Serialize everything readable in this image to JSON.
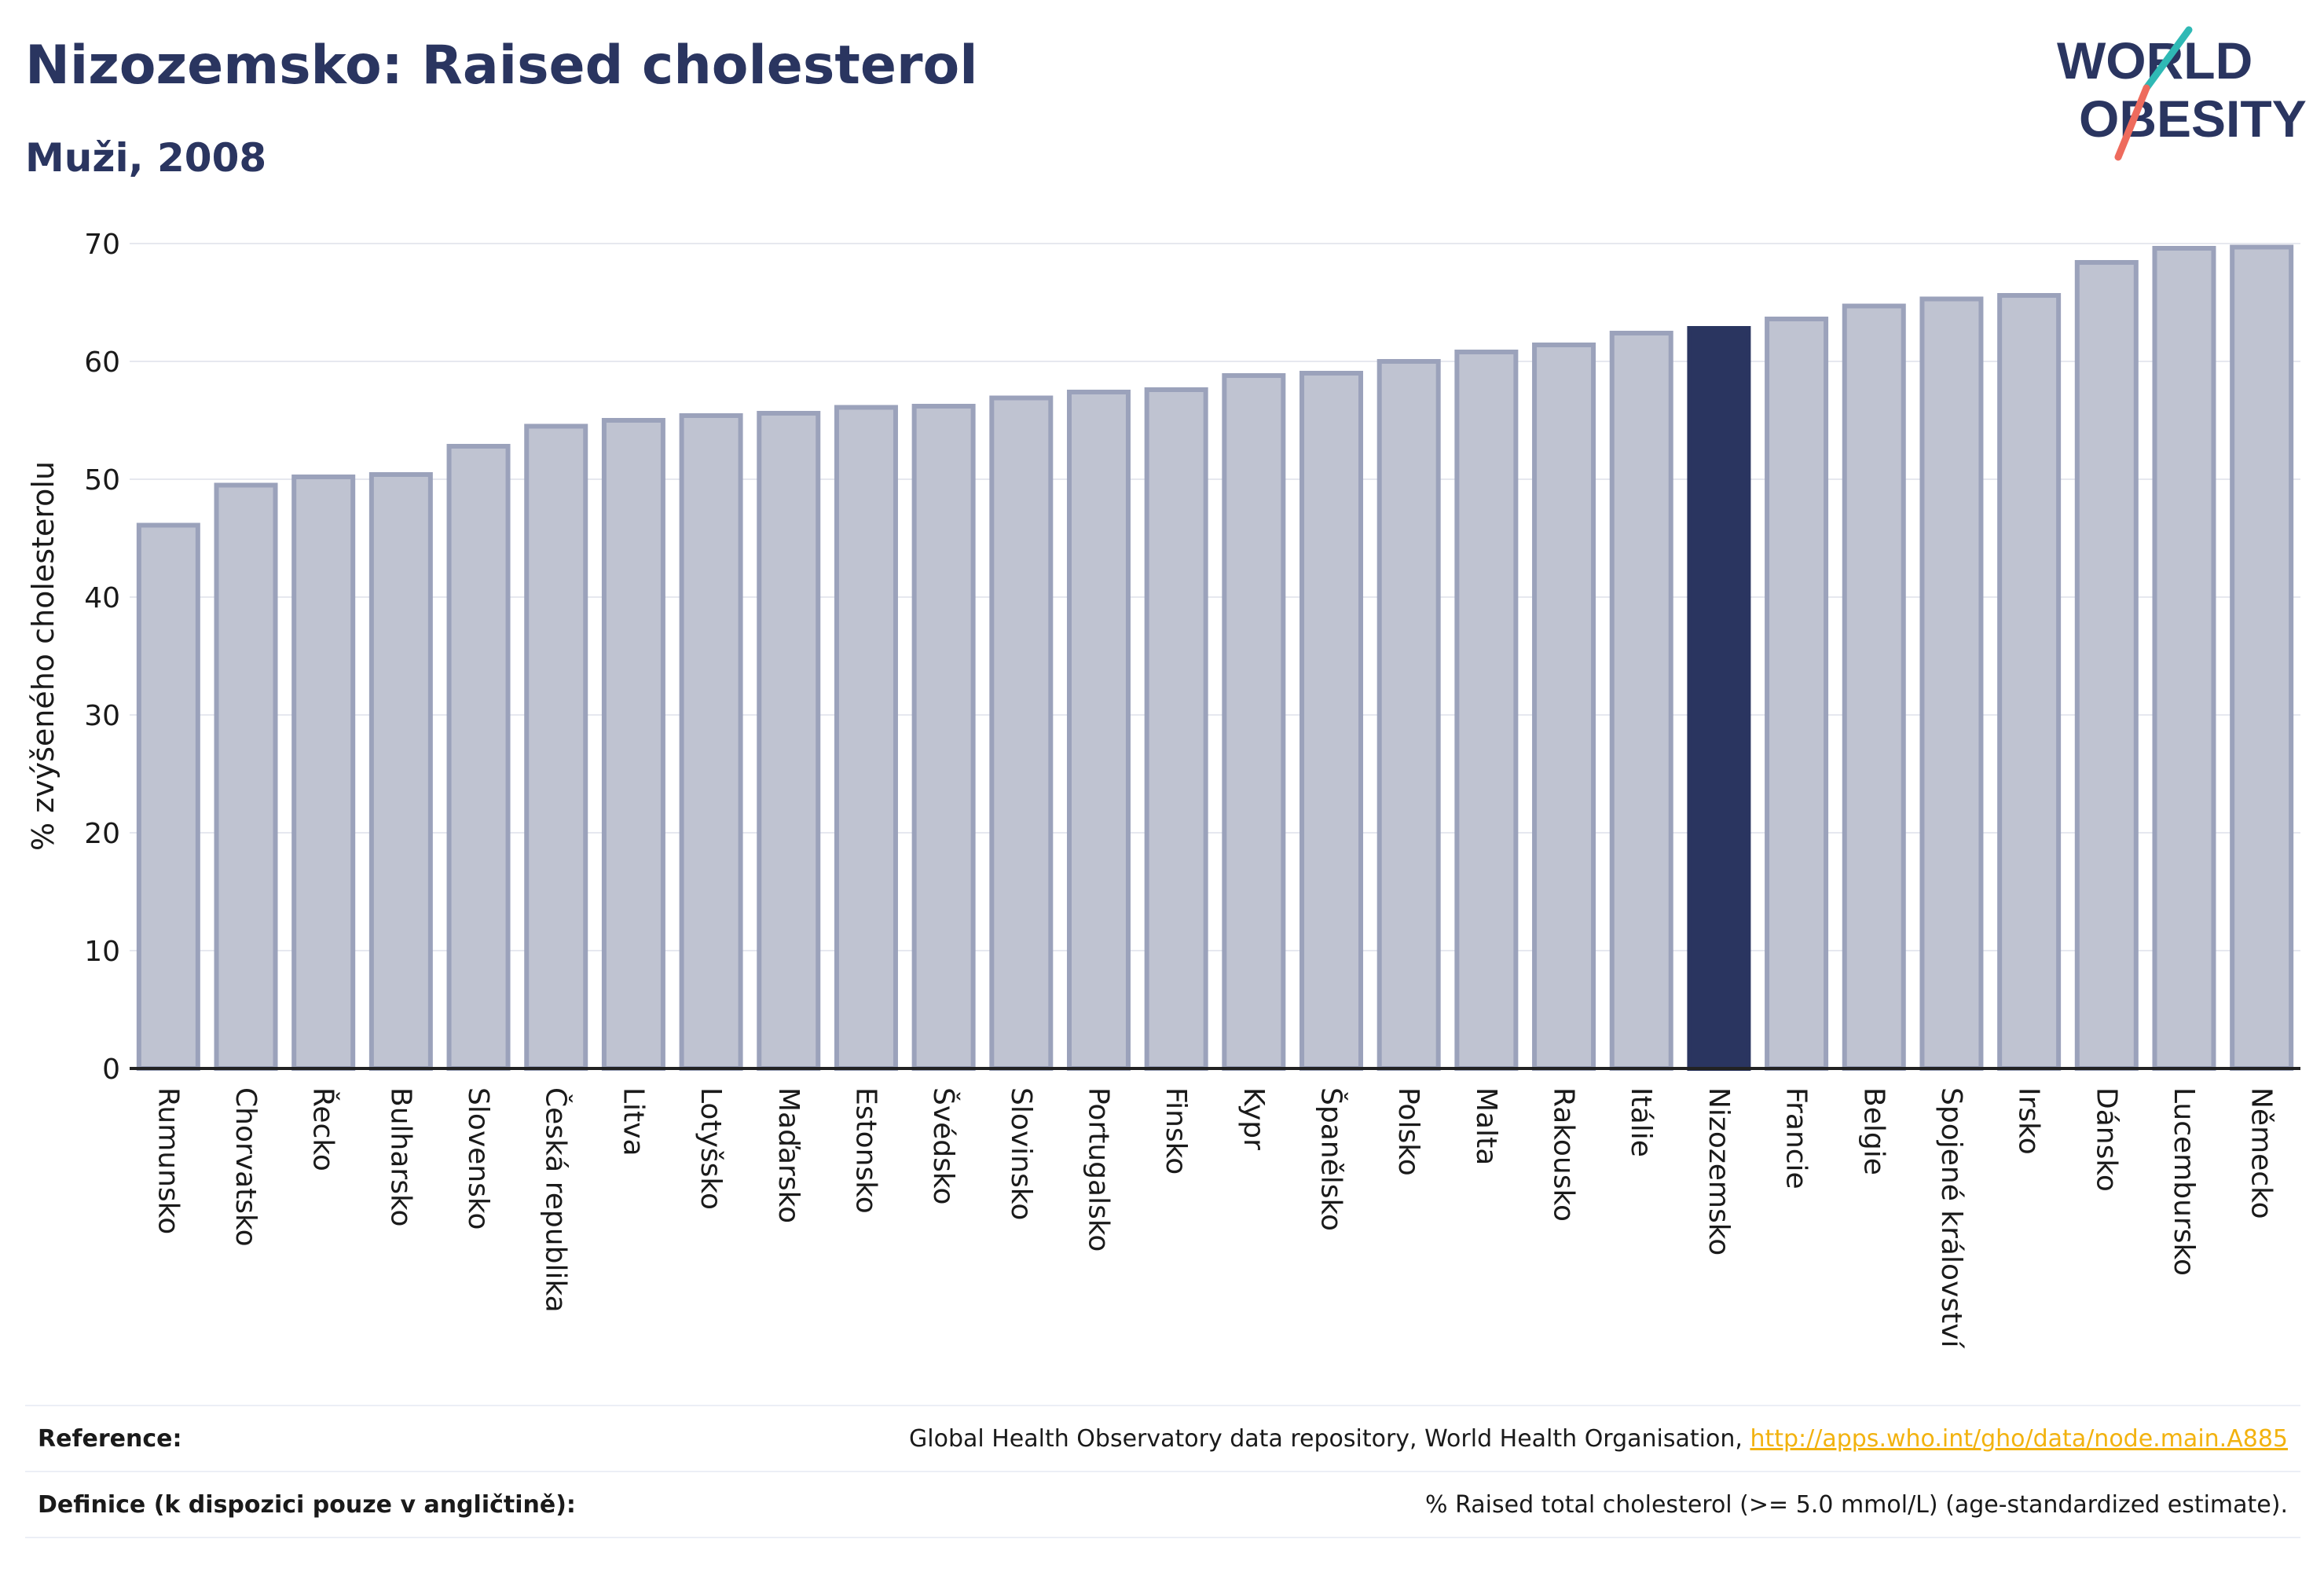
{
  "header": {
    "title": "Nizozemsko: Raised cholesterol",
    "subtitle": "Muži, 2008",
    "logo": {
      "line1": "WORLD",
      "line2": "OBESITY"
    }
  },
  "colors": {
    "title": "#2a3560",
    "bar_fill": "#bfc3d1",
    "bar_stroke": "#9ba2bb",
    "highlight": "#2a3560",
    "logo_teal": "#2fb9b5",
    "logo_coral": "#ee6b5d",
    "link": "#f2b20f"
  },
  "chart_data": {
    "type": "bar",
    "title": "",
    "xlabel": "",
    "ylabel": "% zvýšeného cholesterolu",
    "ylim": [
      0,
      70
    ],
    "yticks": [
      0,
      10,
      20,
      30,
      40,
      50,
      60,
      70
    ],
    "grid": true,
    "highlight_category": "Nizozemsko",
    "categories": [
      "Rumunsko",
      "Chorvatsko",
      "Řecko",
      "Bulharsko",
      "Slovensko",
      "Česká republika",
      "Litva",
      "Lotyšsko",
      "Maďarsko",
      "Estonsko",
      "Švédsko",
      "Slovinsko",
      "Portugalsko",
      "Finsko",
      "Kypr",
      "Španělsko",
      "Polsko",
      "Malta",
      "Rakousko",
      "Itálie",
      "Nizozemsko",
      "Francie",
      "Belgie",
      "Spojené království",
      "Irsko",
      "Dánsko",
      "Lucembursko",
      "Německo"
    ],
    "values": [
      46.1,
      49.5,
      50.2,
      50.4,
      52.8,
      54.5,
      55.0,
      55.4,
      55.6,
      56.1,
      56.2,
      56.9,
      57.4,
      57.6,
      58.8,
      59.0,
      60.0,
      60.8,
      61.4,
      62.4,
      62.8,
      63.6,
      64.7,
      65.3,
      65.6,
      68.4,
      69.6,
      69.7
    ]
  },
  "footer": {
    "reference_label": "Reference:",
    "reference_text": "Global Health Observatory data repository, World Health Organisation, ",
    "reference_link": "http://apps.who.int/gho/data/node.main.A885",
    "definition_label": "Definice (k dispozici pouze v angličtině):",
    "definition_text": "% Raised total cholesterol (>= 5.0 mmol/L) (age-standardized estimate)."
  }
}
